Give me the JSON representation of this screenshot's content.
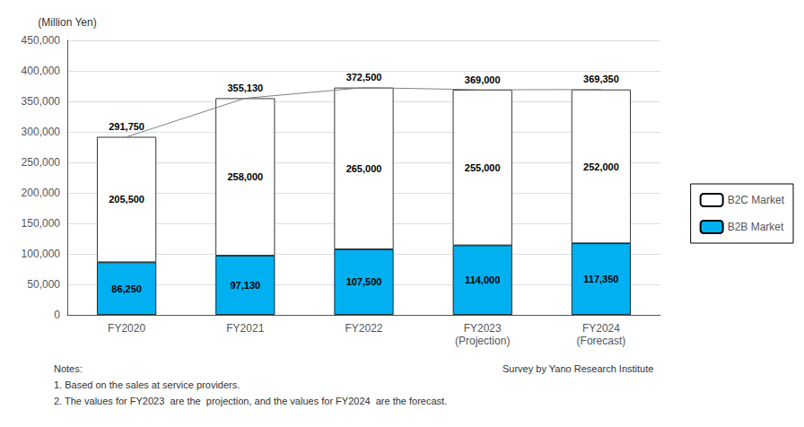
{
  "chart_data": {
    "type": "bar",
    "stacked": true,
    "categories": [
      "FY2020",
      "FY2021",
      "FY2022",
      "FY2023\n(Projection)",
      "FY2024\n(Forecast)"
    ],
    "series": [
      {
        "name": "B2C Market",
        "type": "bar",
        "color": "#ffffff",
        "values": [
          205500,
          258000,
          265000,
          255000,
          252000
        ],
        "value_labels": [
          "205,500",
          "258,000",
          "265,000",
          "255,000",
          "252,000"
        ]
      },
      {
        "name": "B2B Market",
        "type": "bar",
        "color": "#00b0f0",
        "values": [
          86250,
          97130,
          107500,
          114000,
          117350
        ],
        "value_labels": [
          "86,250",
          "97,130",
          "107,500",
          "114,000",
          "117,350"
        ]
      },
      {
        "type": "line",
        "color": "#808080",
        "values": [
          291750,
          355130,
          372500,
          369000,
          369350
        ],
        "value_labels": [
          "291,750",
          "355,130",
          "372,500",
          "369,000",
          "369,350"
        ]
      }
    ],
    "ylabel": "(Million Yen)",
    "ylim": [
      0,
      450000
    ],
    "yticks": [
      0,
      {
        "value": 50000,
        "label": "50,000"
      },
      {
        "value": 100000,
        "label": "100,000"
      },
      {
        "value": 150000,
        "label": "150,000"
      },
      {
        "value": 200000,
        "label": "200,000"
      },
      {
        "value": 250000,
        "label": "250,000"
      },
      {
        "value": 300000,
        "label": "300,000"
      },
      {
        "value": 350000,
        "label": "350,000"
      },
      {
        "value": 400000,
        "label": "400,000"
      },
      {
        "value": 450000,
        "label": "450,000"
      }
    ],
    "grid": true,
    "legend": "right",
    "data_labels": true,
    "annotations": [
      "Notes:",
      "1. Based on the sales at service providers.",
      "2. The values for FY2023  are the  projection, and the values for FY2024  are the forecast.",
      "Survey by Yano Research Institute"
    ]
  }
}
